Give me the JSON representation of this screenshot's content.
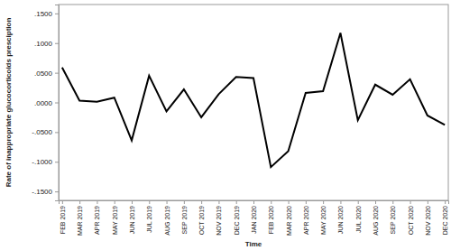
{
  "chart_data": {
    "type": "line",
    "x_label": "Time",
    "y_label": "Rate of inappropriate glucocorticoids presciption",
    "categories": [
      "FEB 2019",
      "MAR 2019",
      "APR 2019",
      "MAY 2019",
      "JUN 2019",
      "JUL 2019",
      "AUG 2019",
      "SEP 2019",
      "OCT 2019",
      "NOV 2019",
      "DEC 2019",
      "JAN 2020",
      "FEB 2020",
      "MAR 2020",
      "APR 2020",
      "MAY 2020",
      "JUN 2020",
      "JUL 2020",
      "AUG 2020",
      "SEP 2020",
      "OCT 2020",
      "NOV 2020",
      "DEC 2020"
    ],
    "values": [
      0.059,
      0.003,
      0.001,
      0.008,
      -0.064,
      0.045,
      -0.015,
      0.022,
      -0.025,
      0.014,
      0.043,
      0.041,
      -0.109,
      -0.082,
      0.016,
      0.019,
      0.117,
      -0.03,
      0.03,
      0.013,
      0.039,
      -0.022,
      -0.038
    ],
    "color": "#000000",
    "ylim": [
      -0.165,
      0.165
    ],
    "yticks": [
      {
        "value": -0.15,
        "label": "-.1500"
      },
      {
        "value": -0.1,
        "label": "-.1000"
      },
      {
        "value": -0.05,
        "label": "-.0500"
      },
      {
        "value": 0,
        "label": ".0000"
      },
      {
        "value": 0.05,
        "label": ".0500"
      },
      {
        "value": 0.1,
        "label": ".1000"
      },
      {
        "value": 0.15,
        "label": ".1500"
      }
    ],
    "grid": false
  }
}
